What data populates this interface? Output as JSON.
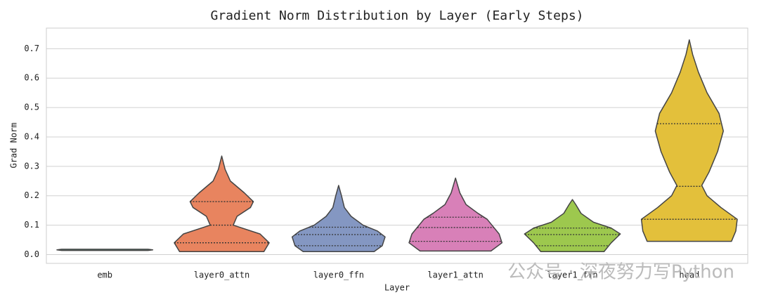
{
  "chart_data": {
    "type": "violin",
    "title": "Gradient Norm Distribution by Layer (Early Steps)",
    "x_label": "Layer",
    "y_label": "Grad Norm",
    "watermark": "公众号 · 深夜努力写Python",
    "categories": [
      "emb",
      "layer0_attn",
      "layer0_ffn",
      "layer1_attn",
      "layer1_ffn",
      "head"
    ],
    "violins": [
      {
        "color": "#6aa894",
        "y": [
          0.014,
          0.016,
          0.018
        ],
        "width": [
          0.9,
          1,
          0.9
        ],
        "quartiles": []
      },
      {
        "color": "#e8845f",
        "y": [
          0.01,
          0.04,
          0.07,
          0.1,
          0.13,
          0.16,
          0.18,
          0.21,
          0.25,
          0.29,
          0.335
        ],
        "width": [
          0.88,
          0.99,
          0.8,
          0.24,
          0.32,
          0.6,
          0.66,
          0.47,
          0.18,
          0.07,
          0
        ],
        "quartiles": [
          0.04,
          0.1,
          0.18
        ]
      },
      {
        "color": "#8497c2",
        "y": [
          0.01,
          0.03,
          0.06,
          0.08,
          0.1,
          0.13,
          0.16,
          0.2,
          0.235
        ],
        "width": [
          0.74,
          0.91,
          0.97,
          0.81,
          0.51,
          0.26,
          0.12,
          0.06,
          0
        ],
        "quartiles": [
          0.03,
          0.068,
          0.093
        ]
      },
      {
        "color": "#d880b8",
        "y": [
          0.012,
          0.04,
          0.07,
          0.1,
          0.12,
          0.14,
          0.17,
          0.21,
          0.26
        ],
        "width": [
          0.74,
          0.97,
          0.91,
          0.76,
          0.66,
          0.47,
          0.22,
          0.09,
          0
        ],
        "quartiles": [
          0.045,
          0.092,
          0.127
        ]
      },
      {
        "color": "#9dc84e",
        "y": [
          0.01,
          0.04,
          0.07,
          0.09,
          0.11,
          0.14,
          0.17,
          0.187
        ],
        "width": [
          0.66,
          0.81,
          1,
          0.81,
          0.44,
          0.18,
          0.07,
          0
        ],
        "quartiles": [
          0.03,
          0.068,
          0.09
        ]
      },
      {
        "color": "#e3c03b",
        "y": [
          0.045,
          0.08,
          0.12,
          0.16,
          0.2,
          0.235,
          0.28,
          0.35,
          0.42,
          0.48,
          0.55,
          0.62,
          0.68,
          0.73
        ],
        "width": [
          0.88,
          0.97,
          1,
          0.66,
          0.37,
          0.26,
          0.41,
          0.59,
          0.71,
          0.62,
          0.37,
          0.19,
          0.07,
          0
        ],
        "quartiles": [
          0.12,
          0.232,
          0.445
        ]
      }
    ],
    "ylim": [
      -0.03,
      0.77
    ],
    "yticks": [
      {
        "value": 0,
        "label": "0.0"
      },
      0.1,
      0.2,
      0.3,
      0.4,
      0.5,
      0.6,
      0.7
    ],
    "grid": true
  }
}
